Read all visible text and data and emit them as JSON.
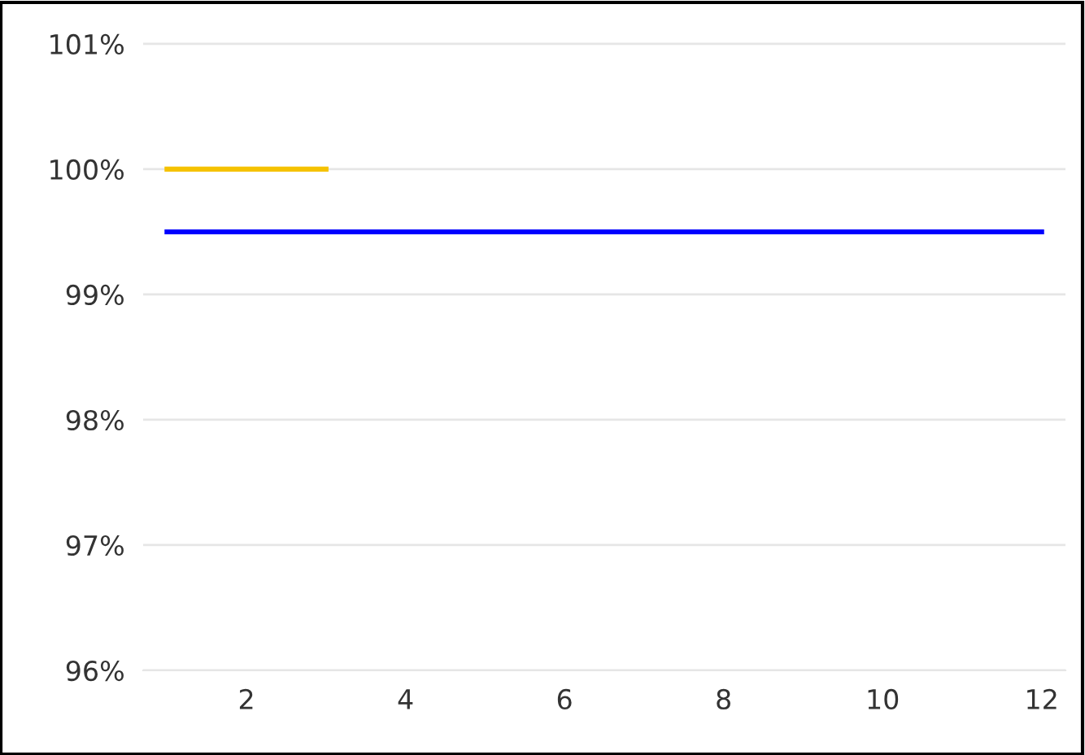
{
  "chart_data": {
    "type": "line",
    "series": [
      {
        "color": "#f5c200",
        "x": [
          1,
          2,
          3
        ],
        "values": [
          100,
          100,
          100
        ]
      },
      {
        "color": "#0000ff",
        "x": [
          1,
          2,
          3,
          4,
          5,
          6,
          7,
          8,
          9,
          10,
          11,
          12
        ],
        "values": [
          99.5,
          99.5,
          99.5,
          99.5,
          99.5,
          99.5,
          99.5,
          99.5,
          99.5,
          99.5,
          99.5,
          99.5
        ]
      }
    ],
    "xlim": [
      0.7,
      12.3
    ],
    "xticks": [
      2,
      4,
      6,
      8,
      10,
      12
    ],
    "ylim": [
      96,
      101.35
    ],
    "yticks": [
      {
        "value": 96,
        "label": "96%"
      },
      {
        "value": 97,
        "label": "97%"
      },
      {
        "value": 98,
        "label": "98%"
      },
      {
        "value": 99,
        "label": "99%"
      },
      {
        "value": 100,
        "label": "100%"
      },
      {
        "value": 101,
        "label": "101%"
      }
    ],
    "grid": "y",
    "legend": false,
    "marker": "none",
    "line_style": "solid"
  }
}
